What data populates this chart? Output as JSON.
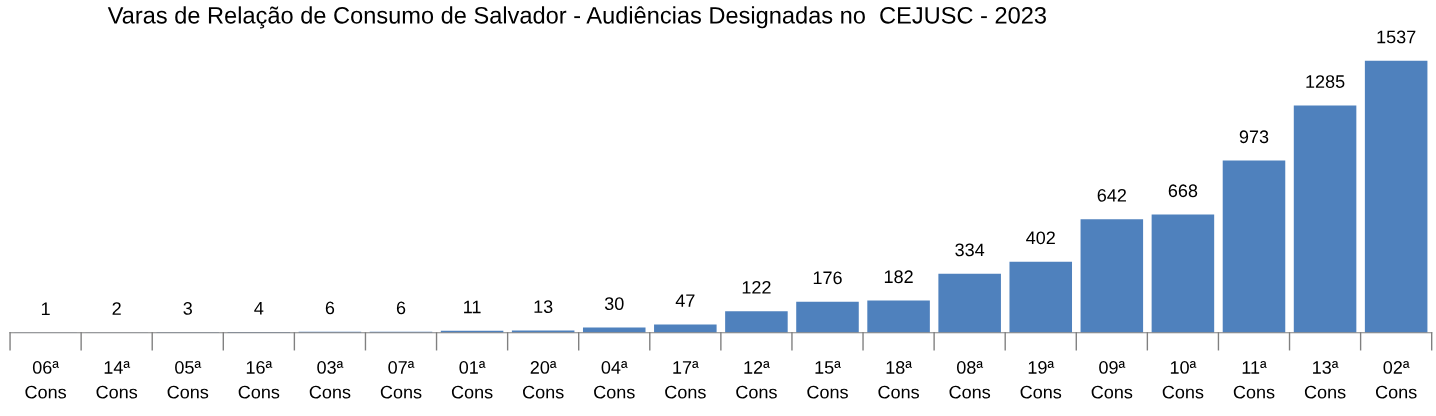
{
  "chart_data": {
    "type": "bar",
    "title": "Varas de Relação de Consumo de Salvador - Audiências Designadas no  CEJUSC - 2023",
    "categories": [
      "06ª Cons",
      "14ª Cons",
      "05ª Cons",
      "16ª Cons",
      "03ª Cons",
      "07ª Cons",
      "01ª Cons",
      "20ª Cons",
      "04ª Cons",
      "17ª Cons",
      "12ª Cons",
      "15ª Cons",
      "18ª Cons",
      "08ª Cons",
      "19ª Cons",
      "09ª Cons",
      "10ª Cons",
      "11ª Cons",
      "13ª Cons",
      "02ª Cons"
    ],
    "values": [
      1,
      2,
      3,
      4,
      6,
      6,
      11,
      13,
      30,
      47,
      122,
      176,
      182,
      334,
      402,
      642,
      668,
      973,
      1285,
      1537
    ],
    "color": "#4f81bd",
    "data_labels": true,
    "grid": false,
    "legend": false
  }
}
